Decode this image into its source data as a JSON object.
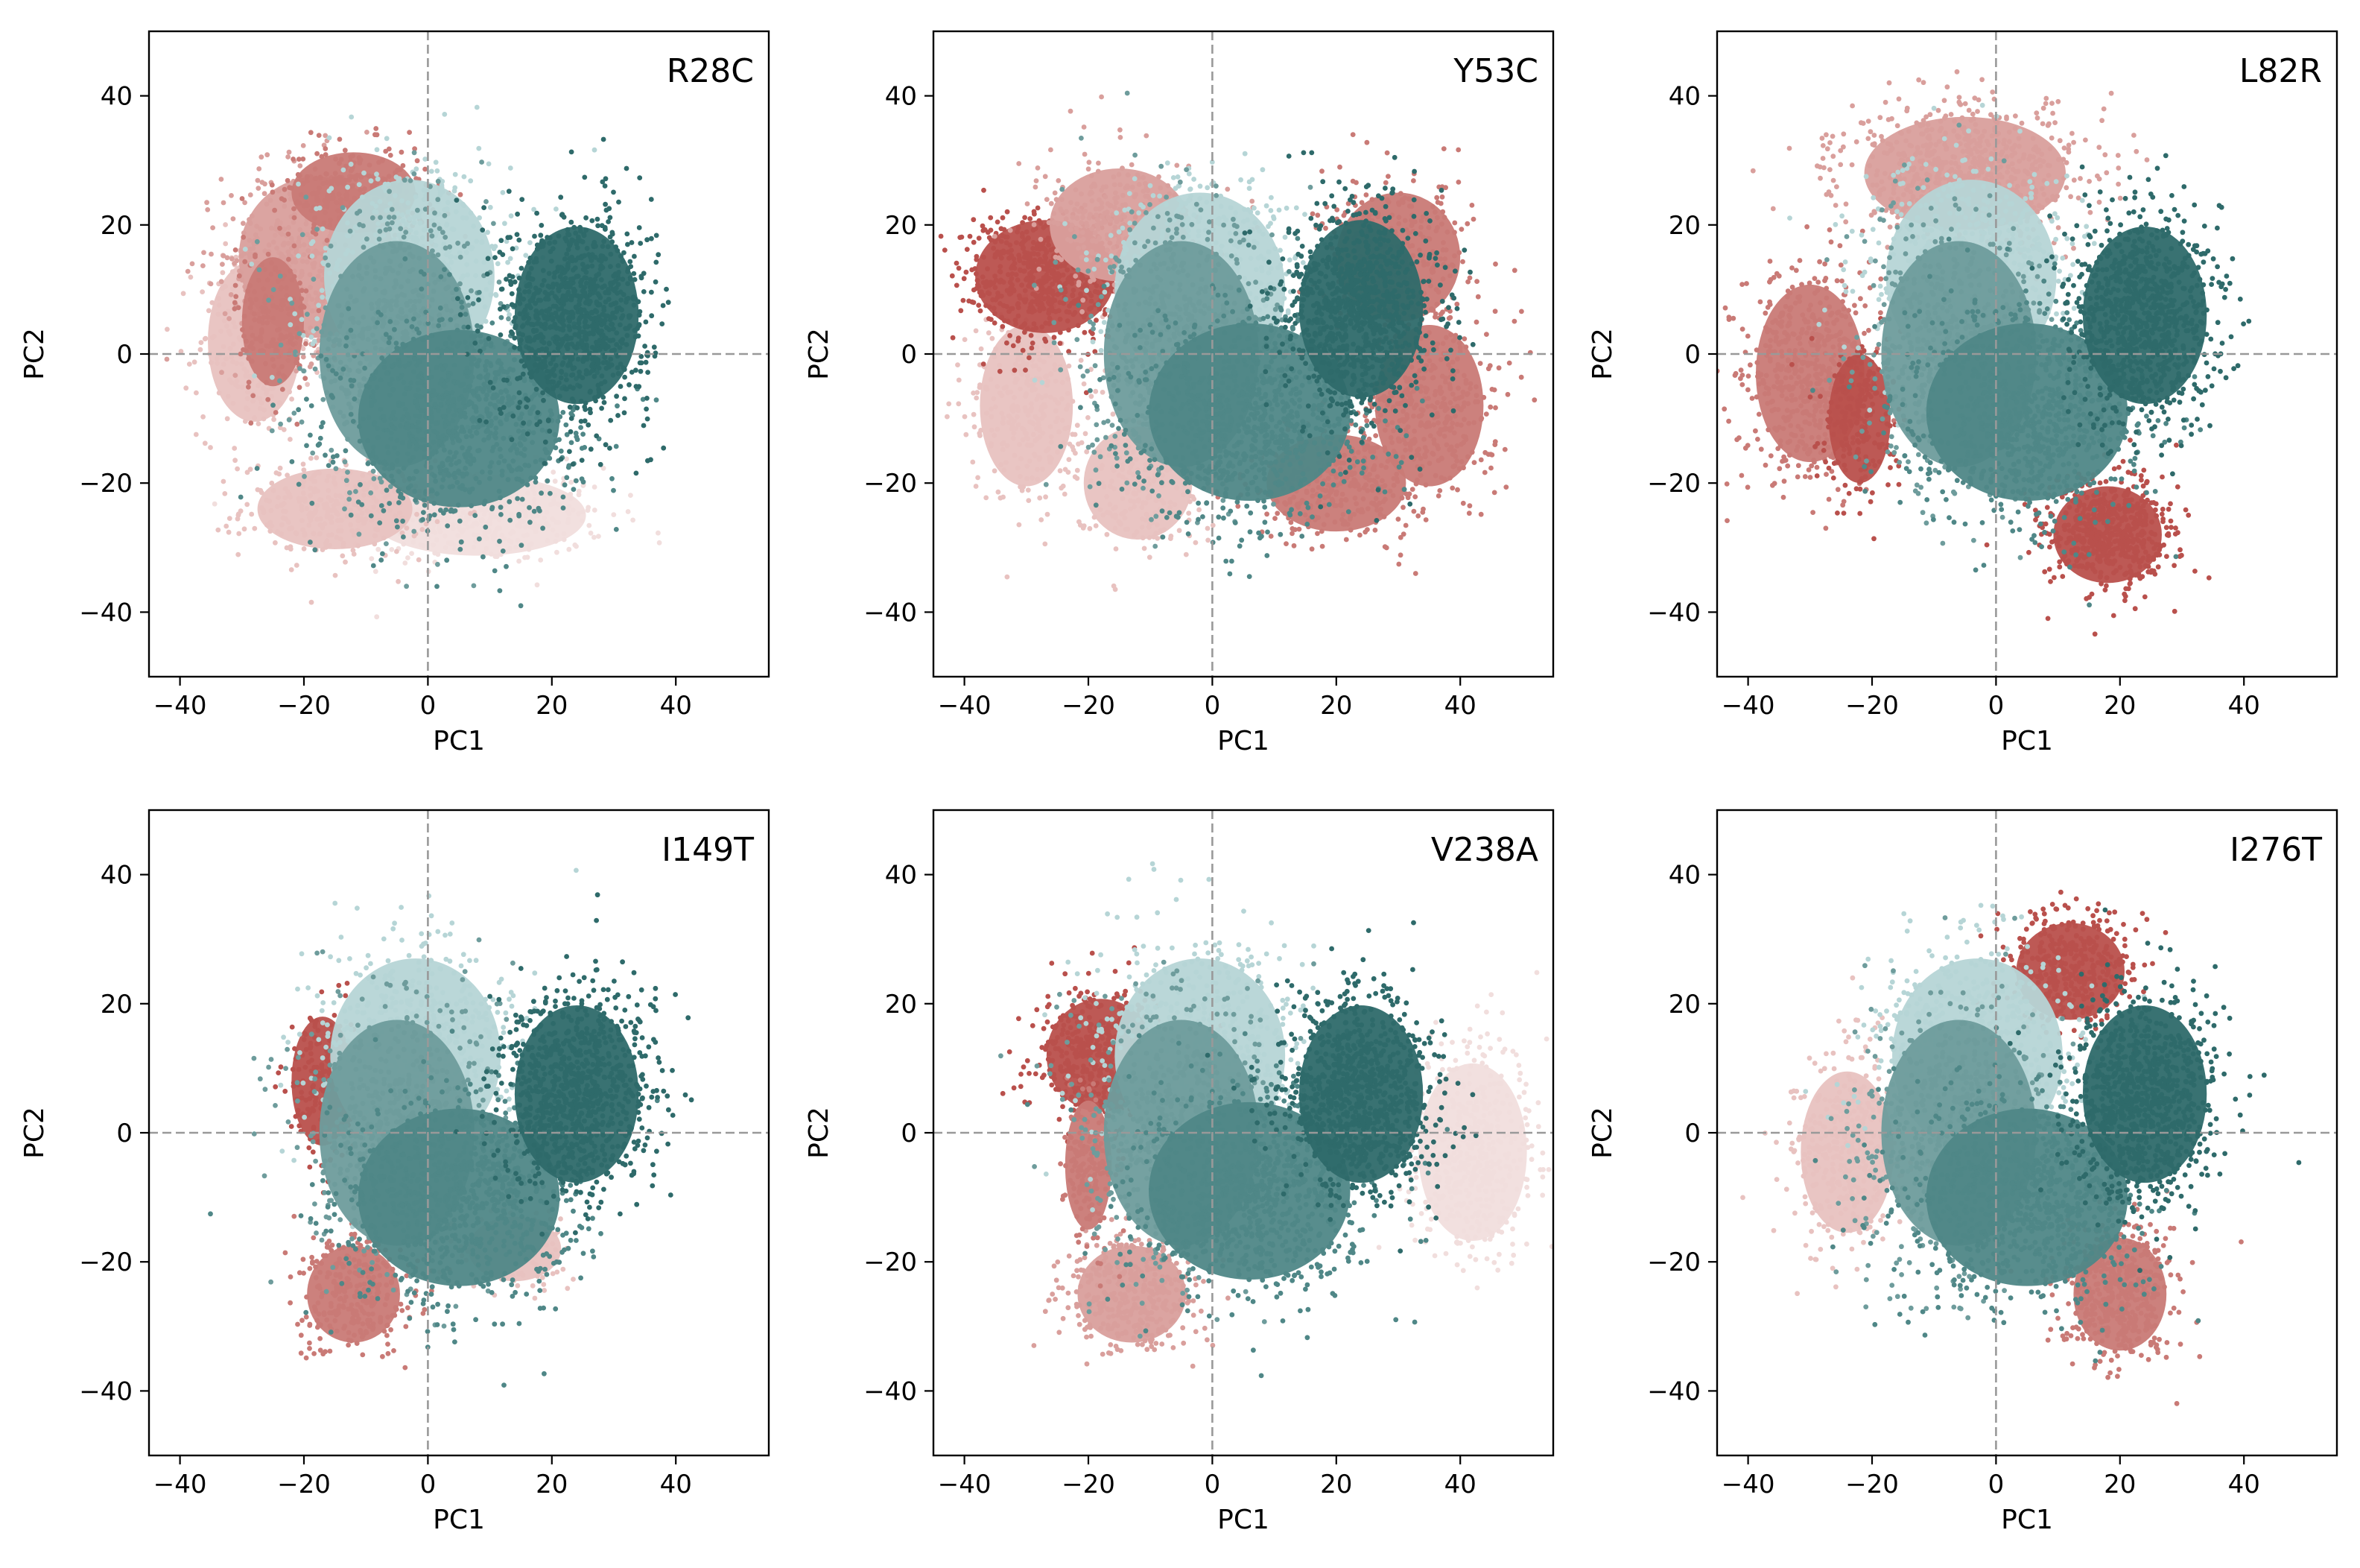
{
  "figure": {
    "x_axis_label": "PC1",
    "y_axis_label": "PC2",
    "colors": {
      "wt_dark": "#2e6a6a",
      "wt_mid": "#4f8787",
      "wt_mid2": "#6e9c9c",
      "wt_light": "#b6d5d6",
      "mut_dark": "#b9504c",
      "mut_mid": "#c97a76",
      "mut_mid2": "#d99f9c",
      "mut_light": "#e8c2c0",
      "mut_faint": "#f1dedd",
      "zero_line": "#999999",
      "frame": "#000000"
    }
  },
  "chart_data": [
    {
      "type": "scatter",
      "title": "R28C",
      "xlabel": "PC1",
      "ylabel": "PC2",
      "xlim": [
        -45,
        55
      ],
      "ylim": [
        -50,
        50
      ],
      "xticks": [
        -40,
        -20,
        0,
        20,
        40
      ],
      "yticks": [
        -40,
        -20,
        0,
        20,
        40
      ],
      "grid": false,
      "reference_lines": {
        "x": 0,
        "y": 0
      },
      "clusters": [
        {
          "group": "mutant",
          "shade": "mut_faint",
          "center": [
            8,
            -25
          ],
          "spread": [
            14,
            5
          ],
          "n": 420
        },
        {
          "group": "mutant",
          "shade": "mut_light",
          "center": [
            -15,
            -24
          ],
          "spread": [
            10,
            5
          ],
          "n": 300
        },
        {
          "group": "mutant",
          "shade": "mut_light",
          "center": [
            -28,
            2
          ],
          "spread": [
            6,
            10
          ],
          "n": 260
        },
        {
          "group": "mutant",
          "shade": "mut_mid2",
          "center": [
            -18,
            15
          ],
          "spread": [
            10,
            10
          ],
          "n": 500
        },
        {
          "group": "mutant",
          "shade": "mut_mid",
          "center": [
            -12,
            25
          ],
          "spread": [
            8,
            5
          ],
          "n": 260
        },
        {
          "group": "mutant",
          "shade": "mut_mid",
          "center": [
            -25,
            5
          ],
          "spread": [
            4,
            8
          ],
          "n": 160
        },
        {
          "group": "wildtype",
          "shade": "wt_light",
          "center": [
            -3,
            12
          ],
          "spread": [
            11,
            12
          ],
          "n": 620
        },
        {
          "group": "wildtype",
          "shade": "wt_mid2",
          "center": [
            -5,
            0
          ],
          "spread": [
            10,
            14
          ],
          "n": 620
        },
        {
          "group": "wildtype",
          "shade": "wt_mid",
          "center": [
            5,
            -10
          ],
          "spread": [
            13,
            11
          ],
          "n": 900
        },
        {
          "group": "wildtype",
          "shade": "wt_dark",
          "center": [
            24,
            6
          ],
          "spread": [
            8,
            11
          ],
          "n": 900
        }
      ]
    },
    {
      "type": "scatter",
      "title": "Y53C",
      "xlabel": "PC1",
      "ylabel": "PC2",
      "xlim": [
        -45,
        55
      ],
      "ylim": [
        -50,
        50
      ],
      "xticks": [
        -40,
        -20,
        0,
        20,
        40
      ],
      "yticks": [
        -40,
        -20,
        0,
        20,
        40
      ],
      "grid": false,
      "reference_lines": {
        "x": 0,
        "y": 0
      },
      "clusters": [
        {
          "group": "mutant",
          "shade": "mut_light",
          "center": [
            -30,
            -8
          ],
          "spread": [
            6,
            10
          ],
          "n": 300
        },
        {
          "group": "mutant",
          "shade": "mut_light",
          "center": [
            -12,
            -20
          ],
          "spread": [
            7,
            7
          ],
          "n": 220
        },
        {
          "group": "mutant",
          "shade": "mut_dark",
          "center": [
            -27,
            12
          ],
          "spread": [
            9,
            7
          ],
          "n": 600
        },
        {
          "group": "mutant",
          "shade": "mut_mid2",
          "center": [
            -15,
            20
          ],
          "spread": [
            9,
            7
          ],
          "n": 300
        },
        {
          "group": "mutant",
          "shade": "mut_mid",
          "center": [
            30,
            15
          ],
          "spread": [
            8,
            8
          ],
          "n": 300
        },
        {
          "group": "mutant",
          "shade": "mut_mid",
          "center": [
            35,
            -8
          ],
          "spread": [
            7,
            10
          ],
          "n": 400
        },
        {
          "group": "mutant",
          "shade": "mut_mid",
          "center": [
            20,
            -20
          ],
          "spread": [
            9,
            6
          ],
          "n": 300
        },
        {
          "group": "wildtype",
          "shade": "wt_light",
          "center": [
            -2,
            10
          ],
          "spread": [
            11,
            12
          ],
          "n": 620
        },
        {
          "group": "wildtype",
          "shade": "wt_mid2",
          "center": [
            -5,
            0
          ],
          "spread": [
            10,
            14
          ],
          "n": 620
        },
        {
          "group": "wildtype",
          "shade": "wt_mid",
          "center": [
            6,
            -9
          ],
          "spread": [
            13,
            11
          ],
          "n": 900
        },
        {
          "group": "wildtype",
          "shade": "wt_dark",
          "center": [
            24,
            7
          ],
          "spread": [
            8,
            11
          ],
          "n": 900
        }
      ]
    },
    {
      "type": "scatter",
      "title": "L82R",
      "xlabel": "PC1",
      "ylabel": "PC2",
      "xlim": [
        -45,
        55
      ],
      "ylim": [
        -50,
        50
      ],
      "xticks": [
        -40,
        -20,
        0,
        20,
        40
      ],
      "yticks": [
        -40,
        -20,
        0,
        20,
        40
      ],
      "grid": false,
      "reference_lines": {
        "x": 0,
        "y": 0
      },
      "clusters": [
        {
          "group": "mutant",
          "shade": "mut_mid2",
          "center": [
            -5,
            28
          ],
          "spread": [
            13,
            7
          ],
          "n": 700
        },
        {
          "group": "mutant",
          "shade": "mut_mid",
          "center": [
            -30,
            -3
          ],
          "spread": [
            7,
            11
          ],
          "n": 600
        },
        {
          "group": "mutant",
          "shade": "mut_dark",
          "center": [
            -22,
            -10
          ],
          "spread": [
            4,
            8
          ],
          "n": 200
        },
        {
          "group": "mutant",
          "shade": "mut_dark",
          "center": [
            18,
            -28
          ],
          "spread": [
            7,
            6
          ],
          "n": 600
        },
        {
          "group": "wildtype",
          "shade": "wt_light",
          "center": [
            -4,
            12
          ],
          "spread": [
            11,
            12
          ],
          "n": 620
        },
        {
          "group": "wildtype",
          "shade": "wt_mid2",
          "center": [
            -6,
            0
          ],
          "spread": [
            10,
            14
          ],
          "n": 620
        },
        {
          "group": "wildtype",
          "shade": "wt_mid",
          "center": [
            5,
            -9
          ],
          "spread": [
            13,
            11
          ],
          "n": 900
        },
        {
          "group": "wildtype",
          "shade": "wt_dark",
          "center": [
            24,
            6
          ],
          "spread": [
            8,
            11
          ],
          "n": 900
        }
      ]
    },
    {
      "type": "scatter",
      "title": "I149T",
      "xlabel": "PC1",
      "ylabel": "PC2",
      "xlim": [
        -45,
        55
      ],
      "ylim": [
        -50,
        50
      ],
      "xticks": [
        -40,
        -20,
        0,
        20,
        40
      ],
      "yticks": [
        -40,
        -20,
        0,
        20,
        40
      ],
      "grid": false,
      "reference_lines": {
        "x": 0,
        "y": 0
      },
      "clusters": [
        {
          "group": "mutant",
          "shade": "mut_mid",
          "center": [
            -12,
            -25
          ],
          "spread": [
            6,
            6
          ],
          "n": 300
        },
        {
          "group": "mutant",
          "shade": "mut_dark",
          "center": [
            -17,
            8
          ],
          "spread": [
            4,
            8
          ],
          "n": 220
        },
        {
          "group": "mutant",
          "shade": "mut_light",
          "center": [
            14,
            -18
          ],
          "spread": [
            6,
            4
          ],
          "n": 160
        },
        {
          "group": "wildtype",
          "shade": "wt_light",
          "center": [
            -2,
            12
          ],
          "spread": [
            11,
            12
          ],
          "n": 620
        },
        {
          "group": "wildtype",
          "shade": "wt_mid2",
          "center": [
            -5,
            0
          ],
          "spread": [
            10,
            14
          ],
          "n": 620
        },
        {
          "group": "wildtype",
          "shade": "wt_mid",
          "center": [
            5,
            -10
          ],
          "spread": [
            13,
            11
          ],
          "n": 900
        },
        {
          "group": "wildtype",
          "shade": "wt_dark",
          "center": [
            24,
            6
          ],
          "spread": [
            8,
            11
          ],
          "n": 900
        }
      ]
    },
    {
      "type": "scatter",
      "title": "V238A",
      "xlabel": "PC1",
      "ylabel": "PC2",
      "xlim": [
        -45,
        55
      ],
      "ylim": [
        -50,
        50
      ],
      "xticks": [
        -40,
        -20,
        0,
        20,
        40
      ],
      "yticks": [
        -40,
        -20,
        0,
        20,
        40
      ],
      "grid": false,
      "reference_lines": {
        "x": 0,
        "y": 0
      },
      "clusters": [
        {
          "group": "mutant",
          "shade": "mut_dark",
          "center": [
            -18,
            12
          ],
          "spread": [
            7,
            7
          ],
          "n": 500
        },
        {
          "group": "mutant",
          "shade": "mut_mid2",
          "center": [
            -13,
            -25
          ],
          "spread": [
            7,
            6
          ],
          "n": 360
        },
        {
          "group": "mutant",
          "shade": "mut_faint",
          "center": [
            42,
            -3
          ],
          "spread": [
            7,
            11
          ],
          "n": 500
        },
        {
          "group": "mutant",
          "shade": "mut_mid",
          "center": [
            -20,
            -5
          ],
          "spread": [
            3,
            8
          ],
          "n": 160
        },
        {
          "group": "wildtype",
          "shade": "wt_light",
          "center": [
            -2,
            12
          ],
          "spread": [
            11,
            12
          ],
          "n": 620
        },
        {
          "group": "wildtype",
          "shade": "wt_mid2",
          "center": [
            -5,
            0
          ],
          "spread": [
            10,
            14
          ],
          "n": 620
        },
        {
          "group": "wildtype",
          "shade": "wt_mid",
          "center": [
            6,
            -9
          ],
          "spread": [
            13,
            11
          ],
          "n": 900
        },
        {
          "group": "wildtype",
          "shade": "wt_dark",
          "center": [
            24,
            6
          ],
          "spread": [
            8,
            11
          ],
          "n": 900
        }
      ]
    },
    {
      "type": "scatter",
      "title": "I276T",
      "xlabel": "PC1",
      "ylabel": "PC2",
      "xlim": [
        -45,
        55
      ],
      "ylim": [
        -50,
        50
      ],
      "xticks": [
        -40,
        -20,
        0,
        20,
        40
      ],
      "yticks": [
        -40,
        -20,
        0,
        20,
        40
      ],
      "grid": false,
      "reference_lines": {
        "x": 0,
        "y": 0
      },
      "clusters": [
        {
          "group": "mutant",
          "shade": "mut_light",
          "center": [
            -24,
            -3
          ],
          "spread": [
            6,
            10
          ],
          "n": 400
        },
        {
          "group": "mutant",
          "shade": "mut_dark",
          "center": [
            12,
            25
          ],
          "spread": [
            7,
            6
          ],
          "n": 400
        },
        {
          "group": "mutant",
          "shade": "mut_mid",
          "center": [
            20,
            -25
          ],
          "spread": [
            6,
            7
          ],
          "n": 500
        },
        {
          "group": "wildtype",
          "shade": "wt_light",
          "center": [
            -3,
            12
          ],
          "spread": [
            11,
            12
          ],
          "n": 620
        },
        {
          "group": "wildtype",
          "shade": "wt_mid2",
          "center": [
            -6,
            0
          ],
          "spread": [
            10,
            14
          ],
          "n": 620
        },
        {
          "group": "wildtype",
          "shade": "wt_mid",
          "center": [
            5,
            -10
          ],
          "spread": [
            13,
            11
          ],
          "n": 900
        },
        {
          "group": "wildtype",
          "shade": "wt_dark",
          "center": [
            24,
            6
          ],
          "spread": [
            8,
            11
          ],
          "n": 900
        }
      ]
    }
  ]
}
